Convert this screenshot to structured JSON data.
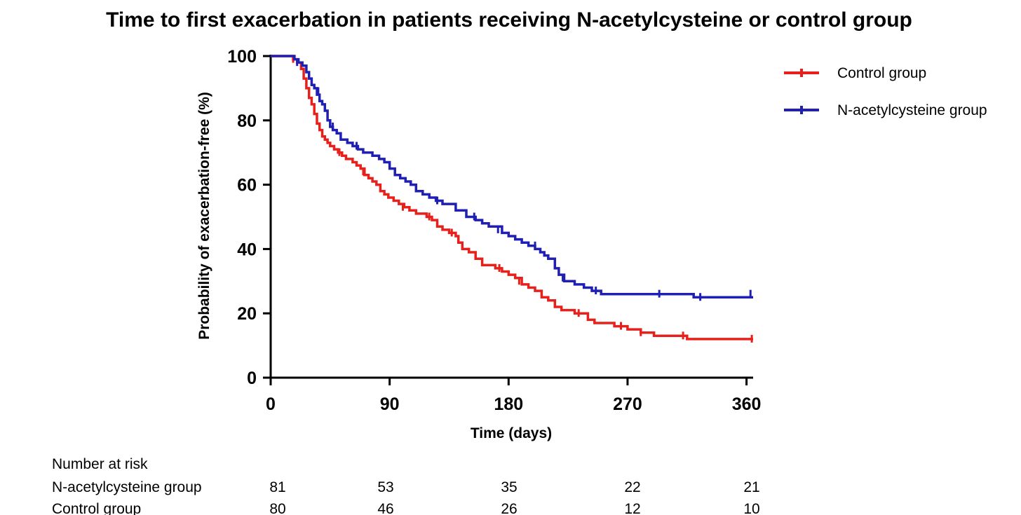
{
  "chart_data": {
    "type": "line",
    "title": "Time to first exacerbation in patients receiving N-acetylcysteine or control group",
    "xlabel": "Time (days)",
    "ylabel": "Probability of exacerbation-free (%)",
    "xlim": [
      0,
      365
    ],
    "ylim": [
      0,
      100
    ],
    "xticks": [
      0,
      90,
      180,
      270,
      360
    ],
    "yticks": [
      0,
      20,
      40,
      60,
      80,
      100
    ],
    "grid": false,
    "legend_position": "top-right",
    "series": [
      {
        "name": "Control group",
        "color": "#e8201c",
        "steps": [
          [
            0,
            100
          ],
          [
            15,
            100
          ],
          [
            17,
            99
          ],
          [
            20,
            98
          ],
          [
            23,
            96
          ],
          [
            25,
            93
          ],
          [
            27,
            90
          ],
          [
            29,
            87
          ],
          [
            31,
            85
          ],
          [
            33,
            82
          ],
          [
            35,
            79
          ],
          [
            37,
            77
          ],
          [
            39,
            75
          ],
          [
            41,
            74
          ],
          [
            43,
            73
          ],
          [
            45,
            72
          ],
          [
            48,
            71
          ],
          [
            51,
            70
          ],
          [
            54,
            69
          ],
          [
            57,
            68
          ],
          [
            62,
            67
          ],
          [
            65,
            66
          ],
          [
            68,
            65
          ],
          [
            71,
            63
          ],
          [
            74,
            62
          ],
          [
            77,
            61
          ],
          [
            80,
            60
          ],
          [
            83,
            58
          ],
          [
            86,
            57
          ],
          [
            89,
            56
          ],
          [
            93,
            55
          ],
          [
            97,
            54
          ],
          [
            101,
            53
          ],
          [
            105,
            52
          ],
          [
            110,
            51
          ],
          [
            118,
            50
          ],
          [
            122,
            49
          ],
          [
            126,
            47
          ],
          [
            130,
            46
          ],
          [
            135,
            45
          ],
          [
            140,
            44
          ],
          [
            142,
            42
          ],
          [
            145,
            40
          ],
          [
            150,
            39
          ],
          [
            155,
            37
          ],
          [
            160,
            35
          ],
          [
            170,
            34
          ],
          [
            175,
            33
          ],
          [
            180,
            32
          ],
          [
            185,
            31
          ],
          [
            190,
            29
          ],
          [
            195,
            28
          ],
          [
            200,
            27
          ],
          [
            205,
            25
          ],
          [
            210,
            24
          ],
          [
            215,
            22
          ],
          [
            220,
            21
          ],
          [
            230,
            20
          ],
          [
            240,
            18
          ],
          [
            245,
            17
          ],
          [
            260,
            16
          ],
          [
            270,
            15
          ],
          [
            280,
            14
          ],
          [
            290,
            13
          ],
          [
            310,
            13
          ],
          [
            315,
            12
          ],
          [
            365,
            12
          ]
        ],
        "censors": [
          [
            17,
            99
          ],
          [
            35,
            80
          ],
          [
            52,
            70
          ],
          [
            70,
            64
          ],
          [
            100,
            53
          ],
          [
            120,
            50
          ],
          [
            137,
            45
          ],
          [
            173,
            34
          ],
          [
            188,
            30
          ],
          [
            233,
            20
          ],
          [
            265,
            16
          ],
          [
            280,
            14
          ],
          [
            312,
            13
          ],
          [
            364,
            12
          ]
        ]
      },
      {
        "name": "N-acetylcysteine group",
        "color": "#1f1fb4",
        "steps": [
          [
            0,
            100
          ],
          [
            15,
            100
          ],
          [
            18,
            99
          ],
          [
            21,
            98
          ],
          [
            24,
            97
          ],
          [
            27,
            95
          ],
          [
            29,
            93
          ],
          [
            31,
            91
          ],
          [
            33,
            90
          ],
          [
            35,
            88
          ],
          [
            37,
            86
          ],
          [
            39,
            85
          ],
          [
            41,
            83
          ],
          [
            43,
            80
          ],
          [
            45,
            78
          ],
          [
            47,
            77
          ],
          [
            50,
            76
          ],
          [
            53,
            74
          ],
          [
            58,
            73
          ],
          [
            62,
            72
          ],
          [
            66,
            71
          ],
          [
            70,
            70
          ],
          [
            77,
            69
          ],
          [
            82,
            68
          ],
          [
            86,
            67
          ],
          [
            90,
            65
          ],
          [
            94,
            63
          ],
          [
            98,
            62
          ],
          [
            102,
            61
          ],
          [
            106,
            60
          ],
          [
            110,
            58
          ],
          [
            115,
            57
          ],
          [
            120,
            56
          ],
          [
            125,
            55
          ],
          [
            130,
            54
          ],
          [
            140,
            52
          ],
          [
            148,
            50
          ],
          [
            155,
            49
          ],
          [
            160,
            48
          ],
          [
            165,
            47
          ],
          [
            175,
            45
          ],
          [
            180,
            44
          ],
          [
            185,
            43
          ],
          [
            190,
            42
          ],
          [
            195,
            41
          ],
          [
            200,
            40
          ],
          [
            204,
            39
          ],
          [
            207,
            38
          ],
          [
            210,
            37
          ],
          [
            215,
            34
          ],
          [
            218,
            32
          ],
          [
            222,
            30
          ],
          [
            230,
            29
          ],
          [
            237,
            28
          ],
          [
            243,
            27
          ],
          [
            250,
            26
          ],
          [
            305,
            26
          ],
          [
            320,
            25
          ],
          [
            365,
            25
          ]
        ],
        "censors": [
          [
            20,
            98
          ],
          [
            36,
            89
          ],
          [
            47,
            78
          ],
          [
            65,
            72
          ],
          [
            90,
            66
          ],
          [
            126,
            55
          ],
          [
            154,
            50
          ],
          [
            172,
            46
          ],
          [
            200,
            41
          ],
          [
            221,
            31
          ],
          [
            246,
            27
          ],
          [
            294,
            26
          ],
          [
            325,
            25
          ],
          [
            363,
            26
          ]
        ]
      }
    ],
    "risk_table": {
      "heading": "Number at risk",
      "timepoints": [
        0,
        90,
        180,
        270,
        360
      ],
      "rows": [
        {
          "label": "N-acetylcysteine group",
          "counts": [
            "81",
            "53",
            "35",
            "22",
            "21"
          ]
        },
        {
          "label": "Control group",
          "counts": [
            "80",
            "46",
            "26",
            "12",
            "10"
          ]
        }
      ]
    }
  }
}
